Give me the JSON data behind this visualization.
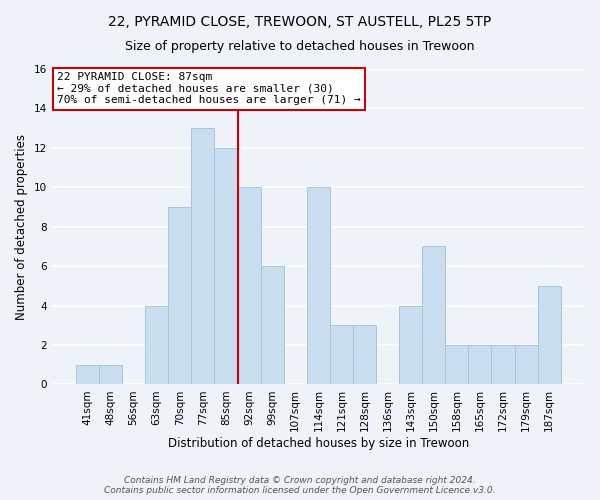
{
  "title": "22, PYRAMID CLOSE, TREWOON, ST AUSTELL, PL25 5TP",
  "subtitle": "Size of property relative to detached houses in Trewoon",
  "xlabel": "Distribution of detached houses by size in Trewoon",
  "ylabel": "Number of detached properties",
  "categories": [
    "41sqm",
    "48sqm",
    "56sqm",
    "63sqm",
    "70sqm",
    "77sqm",
    "85sqm",
    "92sqm",
    "99sqm",
    "107sqm",
    "114sqm",
    "121sqm",
    "128sqm",
    "136sqm",
    "143sqm",
    "150sqm",
    "158sqm",
    "165sqm",
    "172sqm",
    "179sqm",
    "187sqm"
  ],
  "values": [
    1,
    1,
    0,
    4,
    9,
    13,
    12,
    10,
    6,
    0,
    10,
    3,
    3,
    0,
    4,
    7,
    2,
    2,
    2,
    2,
    5
  ],
  "bar_color": "#c9ddf0",
  "bar_edge_color": "#a8c4e0",
  "highlight_bar_index": 6,
  "highlight_line_color": "#cc0000",
  "annotation_title": "22 PYRAMID CLOSE: 87sqm",
  "annotation_line1": "← 29% of detached houses are smaller (30)",
  "annotation_line2": "70% of semi-detached houses are larger (71) →",
  "annotation_box_color": "#ffffff",
  "annotation_box_edge_color": "#cc0000",
  "ylim": [
    0,
    16
  ],
  "yticks": [
    0,
    2,
    4,
    6,
    8,
    10,
    12,
    14,
    16
  ],
  "footer_line1": "Contains HM Land Registry data © Crown copyright and database right 2024.",
  "footer_line2": "Contains public sector information licensed under the Open Government Licence v3.0.",
  "background_color": "#eef2f9",
  "grid_color": "#ffffff",
  "title_fontsize": 10,
  "subtitle_fontsize": 9,
  "axis_label_fontsize": 8.5,
  "tick_fontsize": 7.5,
  "annotation_fontsize": 8,
  "footer_fontsize": 6.5
}
